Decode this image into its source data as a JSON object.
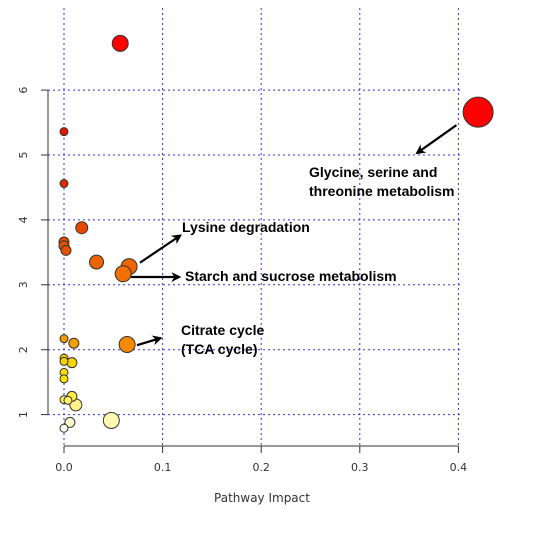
{
  "chart_data": {
    "type": "scatter",
    "xlabel": "Pathway Impact",
    "ylabel": "",
    "xlim": [
      -0.01,
      0.43
    ],
    "ylim": [
      0.65,
      6.95
    ],
    "grid": true,
    "x_ticks": [
      "0.0",
      "0.1",
      "0.2",
      "0.3",
      "0.4"
    ],
    "y_ticks": [
      "1",
      "2",
      "3",
      "4",
      "5",
      "6"
    ],
    "points": [
      {
        "x": 0.057,
        "y": 6.72,
        "size": 8,
        "color": "#ff0000"
      },
      {
        "x": 0.42,
        "y": 5.66,
        "size": 15,
        "color": "#ff0000"
      },
      {
        "x": 0.0,
        "y": 5.36,
        "size": 4,
        "color": "#e01a00"
      },
      {
        "x": 0.0,
        "y": 4.56,
        "size": 4,
        "color": "#e02a00"
      },
      {
        "x": 0.018,
        "y": 3.88,
        "size": 6,
        "color": "#e84800"
      },
      {
        "x": 0.0,
        "y": 3.66,
        "size": 5,
        "color": "#e64c00"
      },
      {
        "x": 0.0,
        "y": 3.6,
        "size": 5,
        "color": "#e85000"
      },
      {
        "x": 0.002,
        "y": 3.53,
        "size": 5,
        "color": "#e85000"
      },
      {
        "x": 0.033,
        "y": 3.35,
        "size": 7,
        "color": "#ee6200"
      },
      {
        "x": 0.066,
        "y": 3.28,
        "size": 8,
        "color": "#f06400"
      },
      {
        "x": 0.06,
        "y": 3.17,
        "size": 8,
        "color": "#f07000"
      },
      {
        "x": 0.0,
        "y": 2.17,
        "size": 4,
        "color": "#f29a00"
      },
      {
        "x": 0.01,
        "y": 2.1,
        "size": 5,
        "color": "#f5a000"
      },
      {
        "x": 0.064,
        "y": 2.08,
        "size": 8,
        "color": "#f58a00"
      },
      {
        "x": 0.0,
        "y": 1.87,
        "size": 4,
        "color": "#f8c800"
      },
      {
        "x": 0.0,
        "y": 1.82,
        "size": 4,
        "color": "#f9d000"
      },
      {
        "x": 0.008,
        "y": 1.8,
        "size": 5,
        "color": "#fad400"
      },
      {
        "x": 0.0,
        "y": 1.65,
        "size": 4,
        "color": "#fcdc00"
      },
      {
        "x": 0.0,
        "y": 1.55,
        "size": 4,
        "color": "#fde200"
      },
      {
        "x": 0.008,
        "y": 1.28,
        "size": 5,
        "color": "#ffee44"
      },
      {
        "x": 0.0,
        "y": 1.23,
        "size": 4,
        "color": "#fff05a"
      },
      {
        "x": 0.004,
        "y": 1.22,
        "size": 4,
        "color": "#fff266"
      },
      {
        "x": 0.012,
        "y": 1.15,
        "size": 6,
        "color": "#fff488"
      },
      {
        "x": 0.048,
        "y": 0.91,
        "size": 8,
        "color": "#fff8b0"
      },
      {
        "x": 0.006,
        "y": 0.88,
        "size": 5,
        "color": "#fffac8"
      },
      {
        "x": 0.0,
        "y": 0.79,
        "size": 4,
        "color": "#fffef4"
      }
    ],
    "annotations": [
      {
        "lines": [
          "Glycine, serine and",
          "threonine metabolism"
        ],
        "arrow_from": [
          0.398,
          5.46
        ],
        "arrow_to": [
          0.358,
          5.03
        ]
      },
      {
        "lines": [
          "Lysine degradation"
        ],
        "arrow_from": [
          0.077,
          3.34
        ],
        "arrow_to": [
          0.118,
          3.76
        ]
      },
      {
        "lines": [
          "Starch and sucrose metabolism"
        ],
        "arrow_from": [
          0.068,
          3.12
        ],
        "arrow_to": [
          0.117,
          3.12
        ]
      },
      {
        "lines": [
          "Citrate cycle",
          "(TCA cycle)"
        ],
        "arrow_from": [
          0.074,
          2.07
        ],
        "arrow_to": [
          0.098,
          2.18
        ]
      }
    ]
  }
}
